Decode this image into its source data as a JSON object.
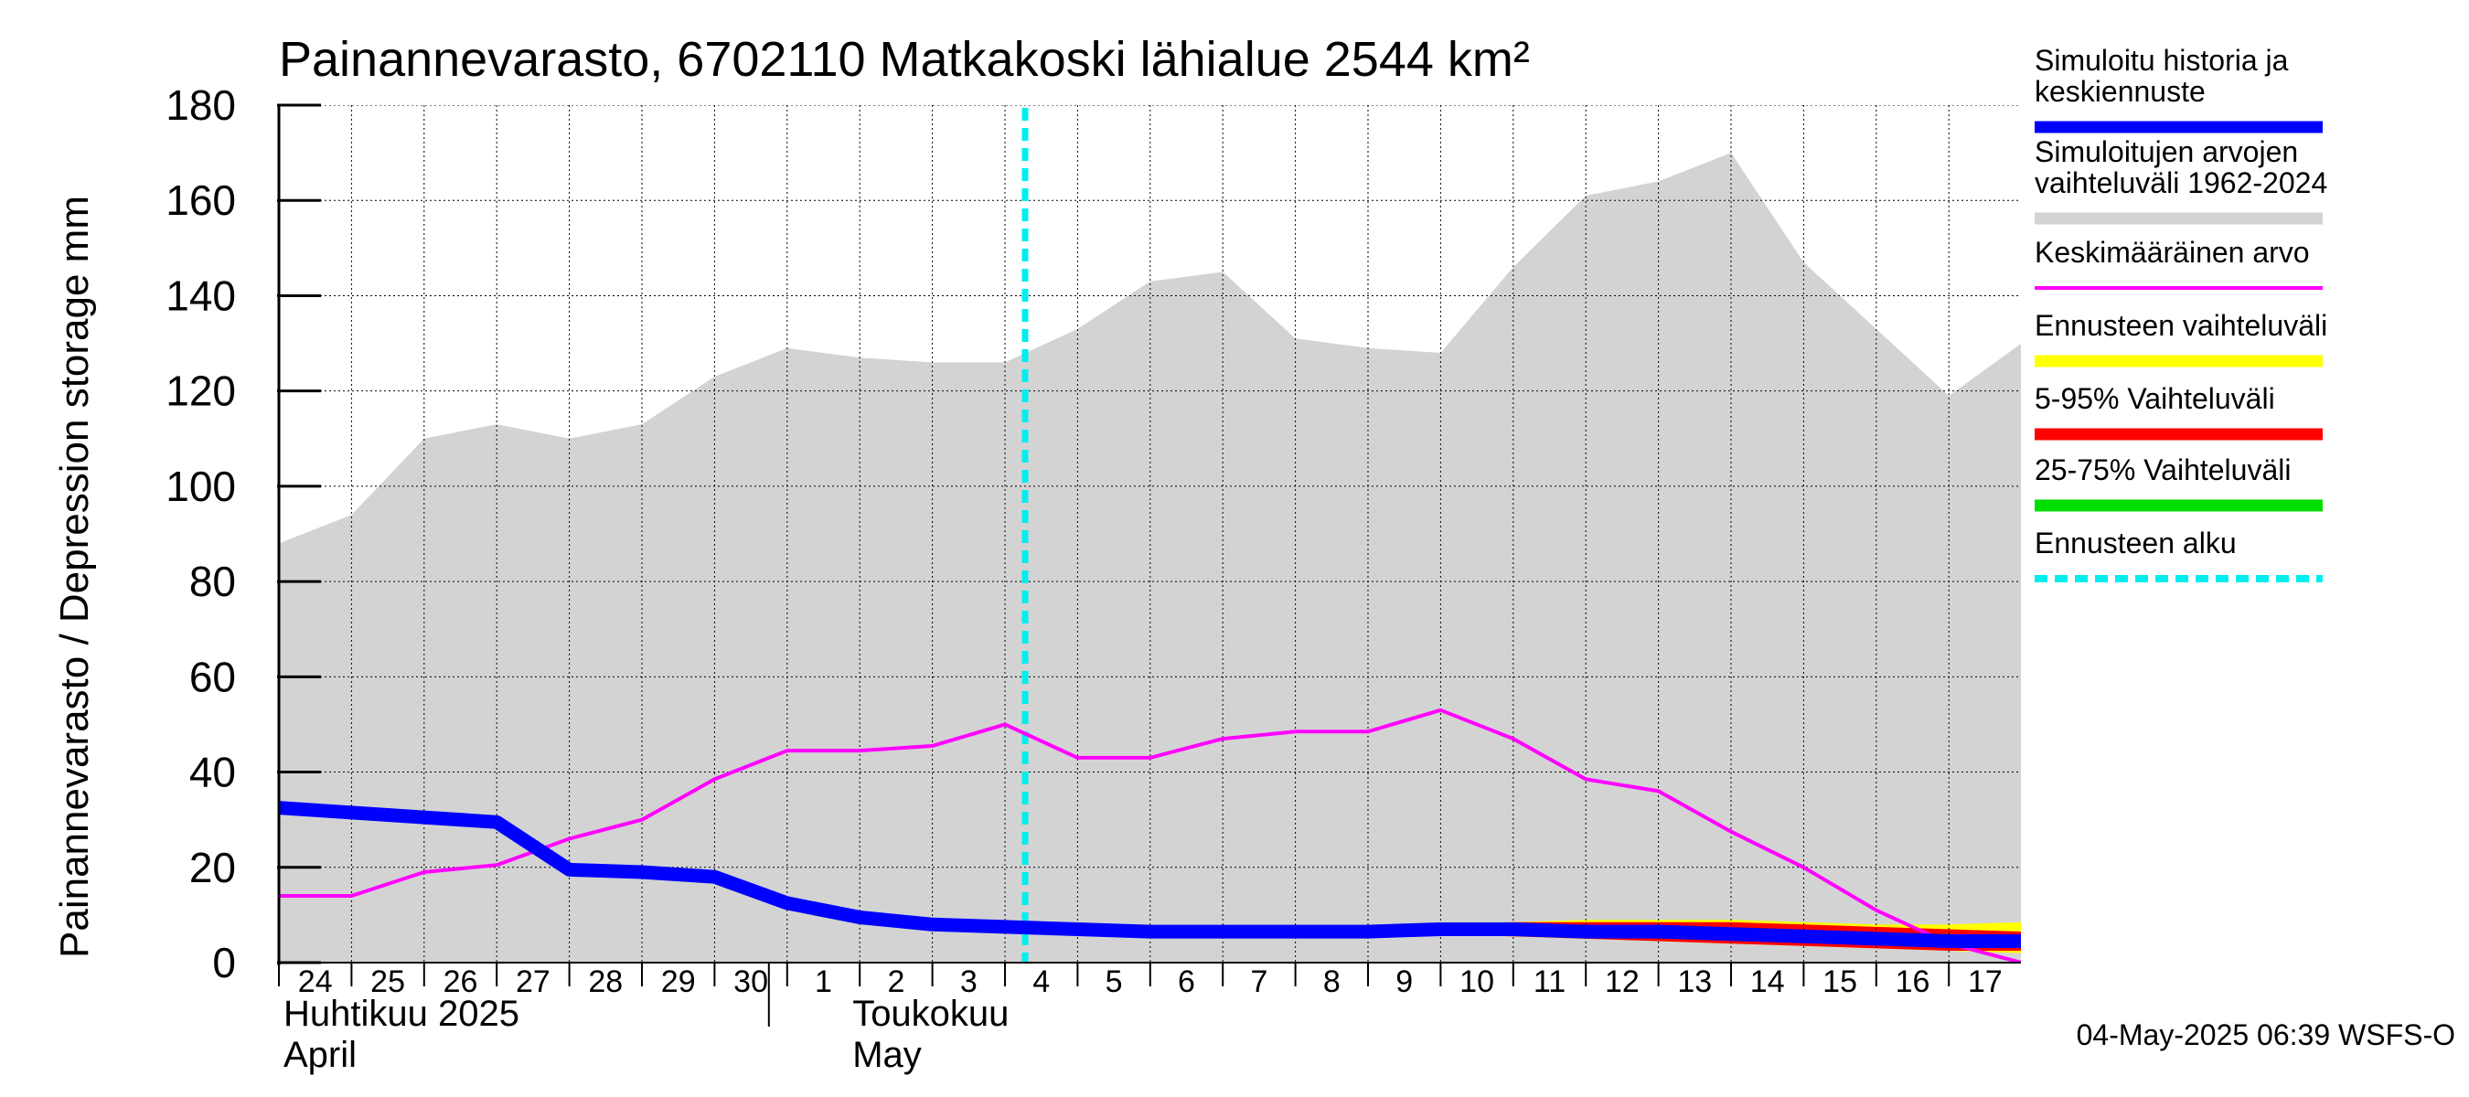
{
  "chart_data": {
    "type": "line",
    "title": "Painannevarasto, 6702110 Matkakoski lähialue 2544 km²",
    "ylabel": "Painannevarasto / Depression storage    mm",
    "ylim": [
      0,
      180
    ],
    "yticks": [
      "0",
      "20",
      "40",
      "60",
      "80",
      "100",
      "120",
      "140",
      "160",
      "180"
    ],
    "grid": true,
    "legend_position": "right",
    "x_dates": [
      "2025-04-24",
      "2025-04-25",
      "2025-04-26",
      "2025-04-27",
      "2025-04-28",
      "2025-04-29",
      "2025-04-30",
      "2025-05-01",
      "2025-05-02",
      "2025-05-03",
      "2025-05-04",
      "2025-05-05",
      "2025-05-06",
      "2025-05-07",
      "2025-05-08",
      "2025-05-09",
      "2025-05-10",
      "2025-05-11",
      "2025-05-12",
      "2025-05-13",
      "2025-05-14",
      "2025-05-15",
      "2025-05-16",
      "2025-05-17",
      "2025-05-18"
    ],
    "xtick_labels": [
      "24",
      "25",
      "26",
      "27",
      "28",
      "29",
      "30",
      "1",
      "2",
      "3",
      "4",
      "5",
      "6",
      "7",
      "8",
      "9",
      "10",
      "11",
      "12",
      "13",
      "14",
      "15",
      "16",
      "17"
    ],
    "month_labels": [
      {
        "fi": "Huhtikuu  2025",
        "en": "April"
      },
      {
        "fi": "Toukokuu",
        "en": "May"
      }
    ],
    "forecast_start": "2025-05-04 06:39",
    "series": [
      {
        "name": "Simuloitujen arvojen vaihteluväli 1962-2024",
        "kind": "band",
        "color": "#d3d3d3",
        "upper": [
          88,
          94,
          110,
          113,
          110,
          113,
          123,
          129,
          127,
          126,
          126,
          133,
          143,
          145,
          131,
          129,
          128,
          146,
          161,
          164,
          170,
          147,
          133,
          119,
          130
        ],
        "lower": [
          0,
          0,
          0,
          0,
          0,
          0,
          0,
          0,
          0,
          0,
          0,
          0,
          0,
          0,
          0,
          0,
          0,
          0,
          0,
          0,
          0,
          0,
          0,
          0,
          0
        ]
      },
      {
        "name": "Keskimääräinen arvo",
        "kind": "line",
        "color": "#ff00ff",
        "values": [
          14,
          14,
          19,
          20.5,
          26,
          30,
          38.5,
          44.5,
          44.5,
          45.5,
          50,
          43,
          43,
          47,
          48.5,
          48.5,
          53,
          47,
          38.5,
          36,
          27.5,
          20,
          11,
          4,
          0
        ]
      },
      {
        "name": "Ennusteen vaihteluväli",
        "kind": "band",
        "color": "#ffff00",
        "x_start_index": 10,
        "upper": [
          7.5,
          7.5,
          7.5,
          7.5,
          7.5,
          7.5,
          8,
          8.5,
          9,
          9,
          9,
          8.5,
          8,
          8,
          8.5
        ],
        "lower": [
          7,
          7,
          6.5,
          6.5,
          6.5,
          6.5,
          6,
          5.5,
          5,
          4.5,
          4,
          3.5,
          3,
          2.5,
          2
        ]
      },
      {
        "name": "5-95% Vaihteluväli",
        "kind": "band",
        "color": "#ff0000",
        "x_start_index": 10,
        "upper": [
          7.5,
          7.5,
          7.5,
          7.5,
          7.5,
          7.5,
          8,
          8.5,
          8.5,
          8.5,
          8.5,
          8,
          7.5,
          7,
          6.5
        ],
        "lower": [
          7,
          7,
          6.5,
          6.5,
          6.5,
          6.5,
          6,
          5.5,
          5,
          4.5,
          4,
          3.5,
          3,
          2.5,
          2.5
        ]
      },
      {
        "name": "25-75% Vaihteluväli",
        "kind": "band",
        "color": "#00dd00",
        "x_start_index": 10,
        "upper": [
          7.5,
          7.5,
          7.5,
          7.5,
          7.5,
          7.5,
          7.5,
          7.5,
          7.5,
          7,
          7,
          6.5,
          6,
          6,
          5.5
        ],
        "lower": [
          7,
          7,
          7,
          7,
          7,
          7,
          7,
          6.5,
          6,
          5.5,
          5,
          5,
          4.5,
          4,
          3.5
        ]
      },
      {
        "name": "Simuloitu historia ja keskiennuste",
        "kind": "line",
        "color": "#0000ff",
        "values": [
          32.5,
          31.5,
          30.5,
          29.5,
          19.5,
          19,
          18,
          12.5,
          9.5,
          8,
          7.5,
          7,
          6.5,
          6.5,
          6.5,
          6.5,
          7,
          7,
          6.5,
          6.5,
          6,
          5.5,
          5,
          4.5,
          4.5
        ]
      }
    ]
  },
  "legend": {
    "items": [
      {
        "label": "Simuloitu historia ja keskiennuste",
        "color": "#0000ff",
        "style": "thick"
      },
      {
        "label": "Simuloitujen arvojen vaihteluväli 1962-2024",
        "color": "#d3d3d3",
        "style": "thick"
      },
      {
        "label": "Keskimääräinen arvo",
        "color": "#ff00ff",
        "style": "thin"
      },
      {
        "label": "Ennusteen vaihteluväli",
        "color": "#ffff00",
        "style": "thick"
      },
      {
        "label": "5-95% Vaihteluväli",
        "color": "#ff0000",
        "style": "thick"
      },
      {
        "label": "25-75% Vaihteluväli",
        "color": "#00dd00",
        "style": "thick"
      },
      {
        "label": "Ennusteen alku",
        "color": "#00eeee",
        "style": "dashed"
      }
    ]
  },
  "footer": "04-May-2025 06:39 WSFS-O"
}
